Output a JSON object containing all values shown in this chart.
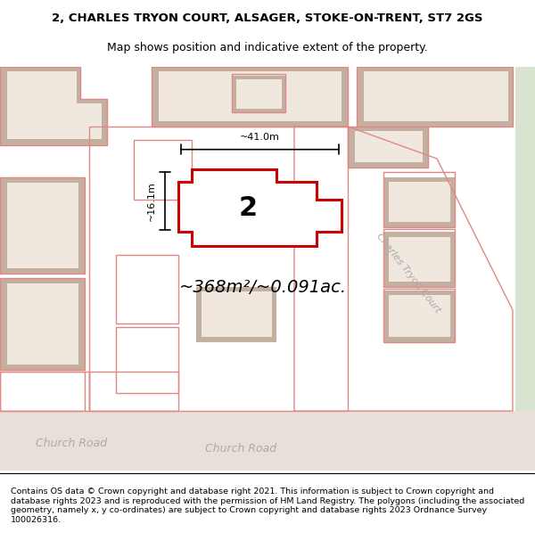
{
  "title_line1": "2, CHARLES TRYON COURT, ALSAGER, STOKE-ON-TRENT, ST7 2GS",
  "title_line2": "Map shows position and indicative extent of the property.",
  "area_text": "~368m²/~0.091ac.",
  "width_text": "~41.0m",
  "height_text": "~16.1m",
  "plot_number": "2",
  "footer_text": "Contains OS data © Crown copyright and database right 2021. This information is subject to Crown copyright and database rights 2023 and is reproduced with the permission of HM Land Registry. The polygons (including the associated geometry, namely x, y co-ordinates) are subject to Crown copyright and database rights 2023 Ordnance Survey 100026316.",
  "map_bg": "#ede8e0",
  "building_outline_color": "#e08888",
  "highlight_color": "#cc0000",
  "building_fill": "#f0e8de",
  "highlight_fill": "#ffffff",
  "road_label_color": "#aaaaaa",
  "right_strip_color": "#d8e4d0",
  "tan_fill": "#c4b0a0",
  "road_fill": "#e8e0d8"
}
